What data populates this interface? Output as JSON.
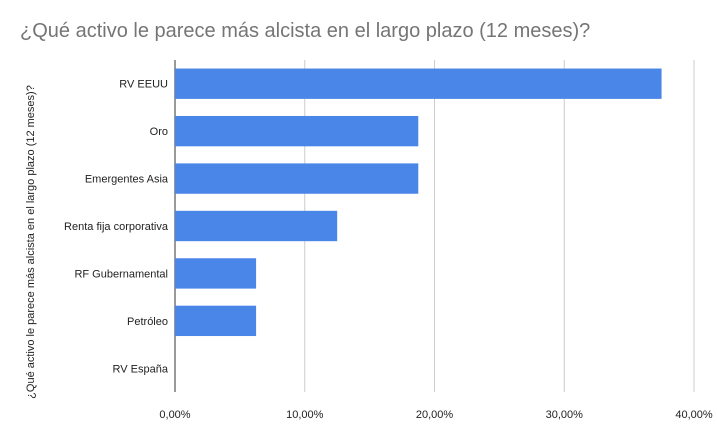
{
  "chart_data": {
    "type": "bar",
    "orientation": "horizontal",
    "title": "¿Qué activo le parece más alcista en el largo plazo (12 meses)?",
    "ylabel": "¿Qué activo le parece más alcista en el largo plazo (12 meses)?",
    "xlabel": "",
    "categories": [
      "RV EEUU",
      "Oro",
      "Emergentes Asia",
      "Renta fija corporativa",
      "RF Gubernamental",
      "Petróleo",
      "RV España"
    ],
    "values": [
      37.5,
      18.75,
      18.75,
      12.5,
      6.25,
      6.25,
      0
    ],
    "xlim": [
      0,
      40
    ],
    "xticks": [
      0,
      10,
      20,
      30,
      40
    ],
    "xtick_labels": [
      "0,00%",
      "10,00%",
      "20,00%",
      "30,00%",
      "40,00%"
    ],
    "grid": true,
    "legend": "none",
    "bar_color": "#4a86e8"
  }
}
